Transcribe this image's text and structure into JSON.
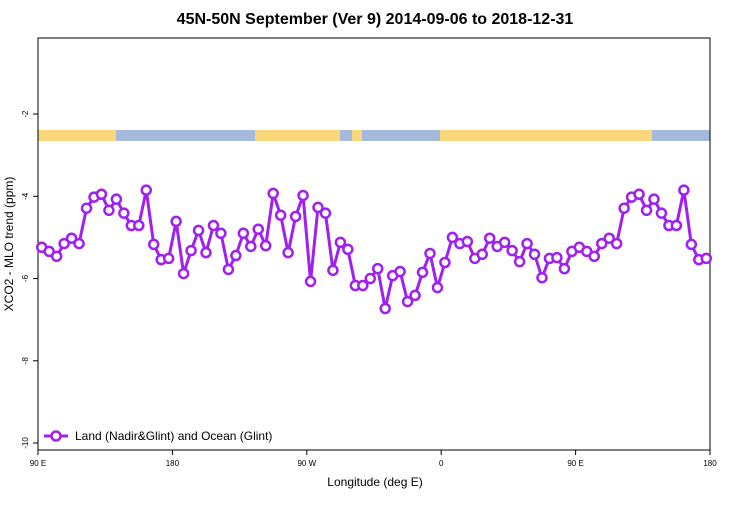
{
  "chart_data": {
    "type": "line",
    "title": "45N-50N September (Ver 9)   2014-09-06 to 2018-12-31",
    "x_label": "Longitude (deg E)",
    "y_label": "XCO2 - MLO trend (ppm)",
    "xlim": [
      90,
      540
    ],
    "xticks": [
      {
        "value": 90,
        "label": "90 E"
      },
      180,
      {
        "value": 270,
        "label": "90 W"
      },
      {
        "value": 360,
        "label": "0"
      },
      {
        "value": 450,
        "label": "90 E"
      },
      {
        "value": 540,
        "label": "180"
      }
    ],
    "ylim": [
      -10.17,
      -0.15
    ],
    "yticks": [
      -2,
      -4,
      -6,
      -8,
      -10
    ],
    "legend": "bottom-left",
    "x": [
      92.5,
      97.5,
      102.5,
      107.5,
      112.5,
      117.5,
      122.5,
      127.5,
      132.5,
      137.5,
      142.5,
      147.5,
      152.5,
      157.5,
      162.5,
      167.5,
      172.5,
      177.5,
      182.5,
      187.5,
      192.5,
      197.5,
      202.5,
      207.5,
      212.5,
      217.5,
      222.5,
      227.5,
      232.5,
      237.5,
      242.5,
      247.5,
      252.5,
      257.5,
      262.5,
      267.5,
      272.5,
      277.5,
      282.5,
      287.5,
      292.5,
      297.5,
      302.5,
      307.5,
      312.5,
      317.5,
      322.5,
      327.5,
      332.5,
      337.5,
      342.5,
      347.5,
      352.5,
      357.5,
      362.5,
      367.5,
      372.5,
      377.5,
      382.5,
      387.5,
      392.5,
      397.5,
      402.5,
      407.5,
      412.5,
      417.5,
      422.5,
      427.5,
      432.5,
      437.5,
      442.5,
      447.5,
      452.5,
      457.5,
      462.5,
      467.5,
      472.5,
      477.5,
      482.5,
      487.5,
      492.5,
      497.5,
      502.5,
      507.5,
      512.5,
      517.5,
      522.5,
      527.5,
      532.5,
      537.5
    ],
    "series": [
      {
        "name": "Land (Nadir&Glint) and Ocean (Glint)",
        "color": "#a020f0",
        "values": [
          -5.24,
          -5.34,
          -5.46,
          -5.15,
          -5.02,
          -5.15,
          -4.29,
          -4.02,
          -3.95,
          -4.34,
          -4.07,
          -4.41,
          -4.71,
          -4.71,
          -3.85,
          -5.17,
          -5.54,
          -5.51,
          -4.61,
          -5.88,
          -5.32,
          -4.83,
          -5.37,
          -4.71,
          -4.9,
          -5.78,
          -5.44,
          -4.9,
          -5.22,
          -4.8,
          -5.2,
          -3.93,
          -4.46,
          -5.37,
          -4.49,
          -3.98,
          -6.07,
          -4.27,
          -4.41,
          -5.8,
          -5.12,
          -5.29,
          -6.17,
          -6.17,
          -6.0,
          -5.76,
          -6.73,
          -5.93,
          -5.83,
          -6.56,
          -6.41,
          -5.85,
          -5.39,
          -6.22,
          -5.61,
          -5.0,
          -5.15,
          -5.1,
          -5.51,
          -5.41,
          -5.02,
          -5.22,
          -5.12,
          -5.32,
          -5.59,
          -5.15,
          -5.41,
          -5.98,
          -5.51,
          -5.49,
          -5.76,
          -5.34,
          -5.24,
          -5.34,
          -5.46,
          -5.15,
          -5.02,
          -5.15,
          -4.29,
          -4.02,
          -3.95,
          -4.34,
          -4.07,
          -4.41,
          -4.71,
          -4.71,
          -3.85,
          -5.17,
          -5.54,
          -5.51
        ]
      }
    ]
  }
}
